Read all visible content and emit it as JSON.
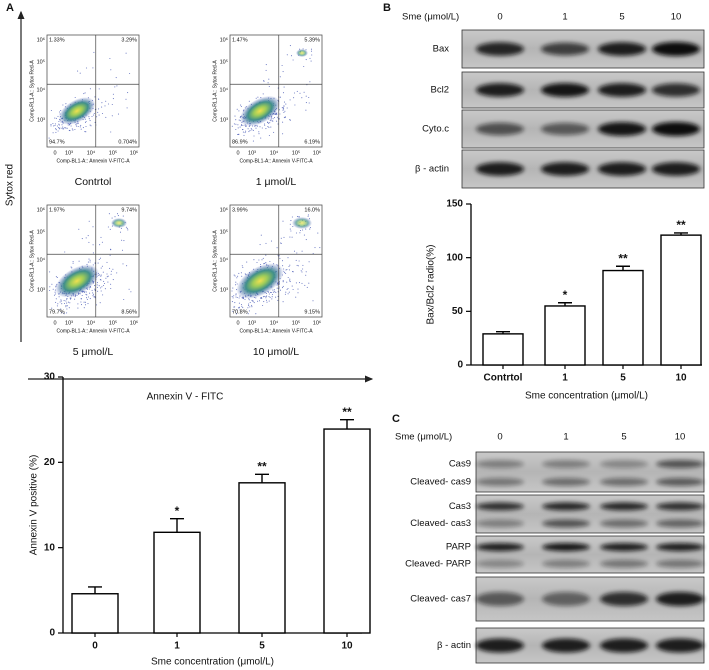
{
  "panel_labels": [
    "A",
    "B",
    "C"
  ],
  "flow": {
    "y_axis_title": "Sytox red",
    "x_axis_title": "Annexin V - FITC",
    "plot_y_label": "Comp-RL1-A:: Sytox Red-A",
    "plot_x_label": "Comp-BL1-A:: Annexin V-FITC-A",
    "y_ticks": [
      "10⁶",
      "10⁵",
      "10⁴",
      "10³"
    ],
    "x_ticks": [
      "0",
      "10³",
      "10⁴",
      "10⁵",
      "10⁶"
    ],
    "plots": [
      {
        "label": "Contrtol",
        "quadrants": [
          "1.33%",
          "3.29%",
          "94.7%",
          "0.704%"
        ]
      },
      {
        "label": "1 μmol/L",
        "quadrants": [
          "1.47%",
          "5.39%",
          "86.9%",
          "6.19%"
        ]
      },
      {
        "label": "5 μmol/L",
        "quadrants": [
          "1.97%",
          "9.74%",
          "79.7%",
          "8.56%"
        ]
      },
      {
        "label": "10 μmol/L",
        "quadrants": [
          "3.99%",
          "16.0%",
          "70.8%",
          "9.15%"
        ]
      }
    ]
  },
  "blot_b": {
    "header": "Sme (μmol/L)",
    "lanes": [
      "0",
      "1",
      "5",
      "10"
    ],
    "rows": [
      "Bax",
      "Bcl2",
      "Cyto.c",
      "β - actin"
    ]
  },
  "blot_c": {
    "header": "Sme (μmol/L)",
    "lanes": [
      "0",
      "1",
      "5",
      "10"
    ],
    "groups": [
      [
        "Cas9",
        "Cleaved- cas9"
      ],
      [
        "Cas3",
        "Cleaved- cas3"
      ],
      [
        "PARP",
        "Cleaved- PARP"
      ],
      [
        "Cleaved- cas7"
      ],
      [
        "β - actin"
      ]
    ]
  },
  "chart_data": [
    {
      "type": "bar",
      "y_label": "Annexin V positive (%)",
      "x_label": "Sme concentration (μmol/L)",
      "categories": [
        "0",
        "1",
        "5",
        "10"
      ],
      "values": [
        4.6,
        11.8,
        17.6,
        23.9
      ],
      "errors": [
        0.8,
        1.6,
        1.0,
        1.1
      ],
      "significance": [
        null,
        "*",
        "**",
        "**"
      ],
      "color": "#ffffff",
      "ylim": [
        0,
        30
      ],
      "yticks": [
        0,
        10,
        20,
        30
      ]
    },
    {
      "type": "bar",
      "y_label": "Bax/Bcl2 radio(%)",
      "x_label": "Sme concentration (μmol/L)",
      "categories": [
        "Contrtol",
        "1",
        "5",
        "10"
      ],
      "values": [
        29,
        55,
        88,
        121
      ],
      "errors": [
        2,
        3,
        4,
        2
      ],
      "significance": [
        null,
        "*",
        "**",
        "**"
      ],
      "color": "#ffffff",
      "ylim": [
        0,
        150
      ],
      "yticks": [
        0,
        50,
        100,
        150
      ]
    }
  ]
}
